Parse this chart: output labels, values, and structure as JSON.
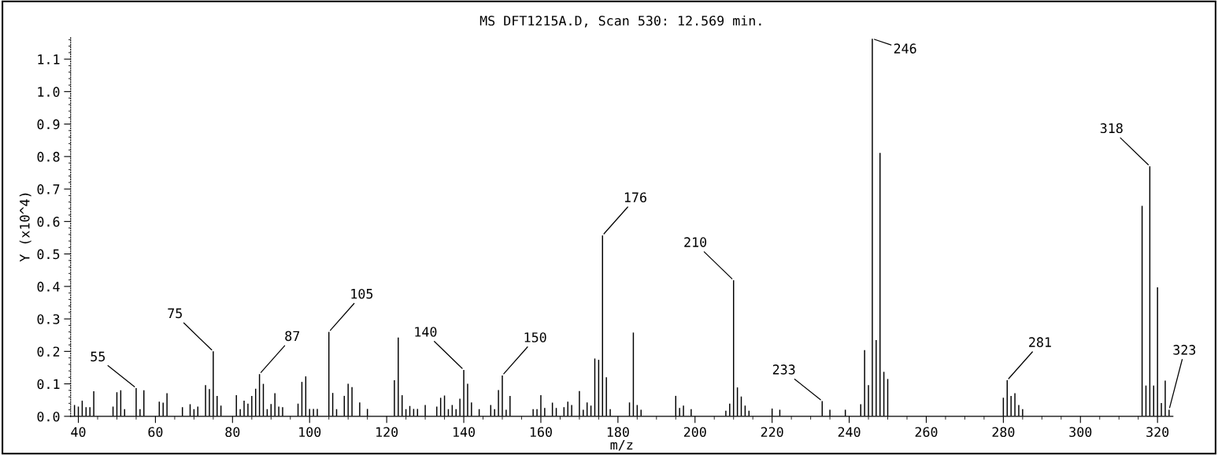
{
  "chart_data": {
    "type": "bar",
    "title": "MS DFT1215A.D, Scan 530: 12.569 min.",
    "xlabel": "m/z",
    "ylabel": "Y (x10^4)",
    "x": [
      39,
      40,
      41,
      42,
      43,
      44,
      49,
      50,
      51,
      52,
      55,
      56,
      57,
      61,
      62,
      63,
      67,
      69,
      70,
      71,
      73,
      74,
      75,
      76,
      77,
      81,
      82,
      83,
      84,
      85,
      86,
      87,
      88,
      89,
      90,
      91,
      92,
      93,
      97,
      98,
      99,
      100,
      101,
      102,
      105,
      106,
      107,
      109,
      110,
      111,
      113,
      115,
      122,
      123,
      124,
      125,
      126,
      127,
      128,
      130,
      133,
      134,
      135,
      136,
      137,
      138,
      139,
      140,
      141,
      142,
      144,
      147,
      148,
      149,
      150,
      151,
      152,
      158,
      159,
      160,
      161,
      163,
      164,
      166,
      167,
      168,
      170,
      171,
      172,
      173,
      174,
      175,
      176,
      177,
      178,
      183,
      184,
      185,
      186,
      195,
      196,
      197,
      199,
      208,
      209,
      210,
      211,
      212,
      213,
      214,
      220,
      222,
      233,
      235,
      239,
      243,
      244,
      245,
      246,
      247,
      248,
      249,
      250,
      280,
      281,
      282,
      283,
      284,
      285,
      316,
      317,
      318,
      319,
      320,
      321,
      322,
      323
    ],
    "values": [
      0.035,
      0.03,
      0.048,
      0.028,
      0.028,
      0.077,
      0.03,
      0.074,
      0.08,
      0.022,
      0.087,
      0.022,
      0.08,
      0.045,
      0.042,
      0.071,
      0.028,
      0.037,
      0.022,
      0.03,
      0.096,
      0.084,
      0.2,
      0.063,
      0.033,
      0.065,
      0.022,
      0.048,
      0.039,
      0.063,
      0.085,
      0.13,
      0.1,
      0.022,
      0.038,
      0.071,
      0.03,
      0.028,
      0.039,
      0.106,
      0.123,
      0.023,
      0.023,
      0.023,
      0.26,
      0.072,
      0.022,
      0.063,
      0.1,
      0.09,
      0.043,
      0.023,
      0.111,
      0.243,
      0.065,
      0.022,
      0.032,
      0.023,
      0.023,
      0.035,
      0.03,
      0.057,
      0.064,
      0.022,
      0.035,
      0.022,
      0.054,
      0.143,
      0.1,
      0.043,
      0.022,
      0.035,
      0.022,
      0.081,
      0.126,
      0.02,
      0.063,
      0.022,
      0.022,
      0.065,
      0.026,
      0.042,
      0.026,
      0.028,
      0.045,
      0.035,
      0.078,
      0.02,
      0.043,
      0.033,
      0.178,
      0.174,
      0.557,
      0.12,
      0.022,
      0.043,
      0.258,
      0.035,
      0.02,
      0.063,
      0.026,
      0.033,
      0.022,
      0.017,
      0.039,
      0.419,
      0.089,
      0.061,
      0.033,
      0.017,
      0.024,
      0.02,
      0.047,
      0.02,
      0.02,
      0.037,
      0.204,
      0.096,
      1.163,
      0.235,
      0.811,
      0.137,
      0.115,
      0.057,
      0.111,
      0.063,
      0.071,
      0.035,
      0.022,
      0.648,
      0.095,
      0.77,
      0.095,
      0.397,
      0.041,
      0.11,
      0.02
    ],
    "color": "#000000",
    "xlim": [
      38,
      324
    ],
    "ylim": [
      0,
      1.17
    ],
    "xticks": [
      40,
      60,
      80,
      100,
      120,
      140,
      160,
      180,
      200,
      220,
      240,
      260,
      280,
      300,
      320
    ],
    "yticks": [
      {
        "value": 0,
        "label": "0.0"
      },
      {
        "value": 0.1,
        "label": "0.1"
      },
      {
        "value": 0.2,
        "label": "0.2"
      },
      {
        "value": 0.3,
        "label": "0.3"
      },
      {
        "value": 0.4,
        "label": "0.4"
      },
      {
        "value": 0.5,
        "label": "0.5"
      },
      {
        "value": 0.6,
        "label": "0.6"
      },
      {
        "value": 0.7,
        "label": "0.7"
      },
      {
        "value": 0.8,
        "label": "0.8"
      },
      {
        "value": 0.9,
        "label": "0.9"
      },
      {
        "value": 1.0,
        "label": "1.0"
      },
      {
        "value": 1.1,
        "label": "1.1"
      }
    ],
    "grid": false,
    "legend": false,
    "annotations": [
      {
        "text": "55",
        "x": 55,
        "y": 0.087
      },
      {
        "text": "75",
        "x": 75,
        "y": 0.2
      },
      {
        "text": "87",
        "x": 87,
        "y": 0.13
      },
      {
        "text": "105",
        "x": 105,
        "y": 0.26
      },
      {
        "text": "140",
        "x": 140,
        "y": 0.143
      },
      {
        "text": "150",
        "x": 150,
        "y": 0.126
      },
      {
        "text": "176",
        "x": 176,
        "y": 0.557
      },
      {
        "text": "210",
        "x": 210,
        "y": 0.419
      },
      {
        "text": "233",
        "x": 233,
        "y": 0.047
      },
      {
        "text": "246",
        "x": 246,
        "y": 1.163
      },
      {
        "text": "281",
        "x": 281,
        "y": 0.111
      },
      {
        "text": "318",
        "x": 318,
        "y": 0.77
      },
      {
        "text": "323",
        "x": 323,
        "y": 0.02
      }
    ]
  }
}
